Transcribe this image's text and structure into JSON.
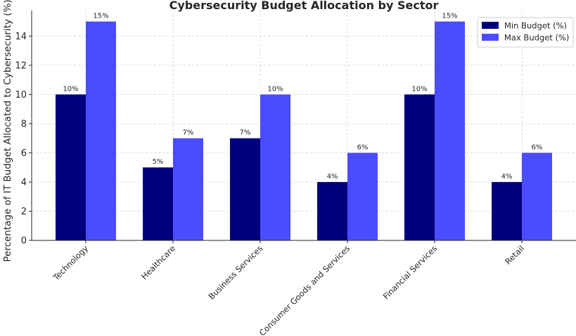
{
  "chart_data": {
    "type": "bar",
    "title": "Cybersecurity Budget Allocation by Sector",
    "ylabel": "Percentage of IT Budget Allocated to Cybersecurity (%)",
    "xlabel": "",
    "categories": [
      "Technology",
      "Healthcare",
      "Business Services",
      "Consumer Goods and Services",
      "Financial Services",
      "Retail"
    ],
    "series": [
      {
        "name": "Min Budget (%)",
        "color": "#00007f",
        "values": [
          10,
          5,
          7,
          4,
          10,
          4
        ],
        "labels": [
          "10%",
          "5%",
          "7%",
          "4%",
          "10%",
          "4%"
        ]
      },
      {
        "name": "Max Budget (%)",
        "color": "#4c4cff",
        "values": [
          15,
          7,
          10,
          6,
          15,
          6
        ],
        "labels": [
          "15%",
          "7%",
          "10%",
          "6%",
          "15%",
          "6%"
        ]
      }
    ],
    "yticks": [
      0,
      2,
      4,
      6,
      8,
      10,
      12,
      14
    ],
    "ylim": [
      0,
      15.75
    ],
    "grid": true,
    "legend": "top-right"
  }
}
